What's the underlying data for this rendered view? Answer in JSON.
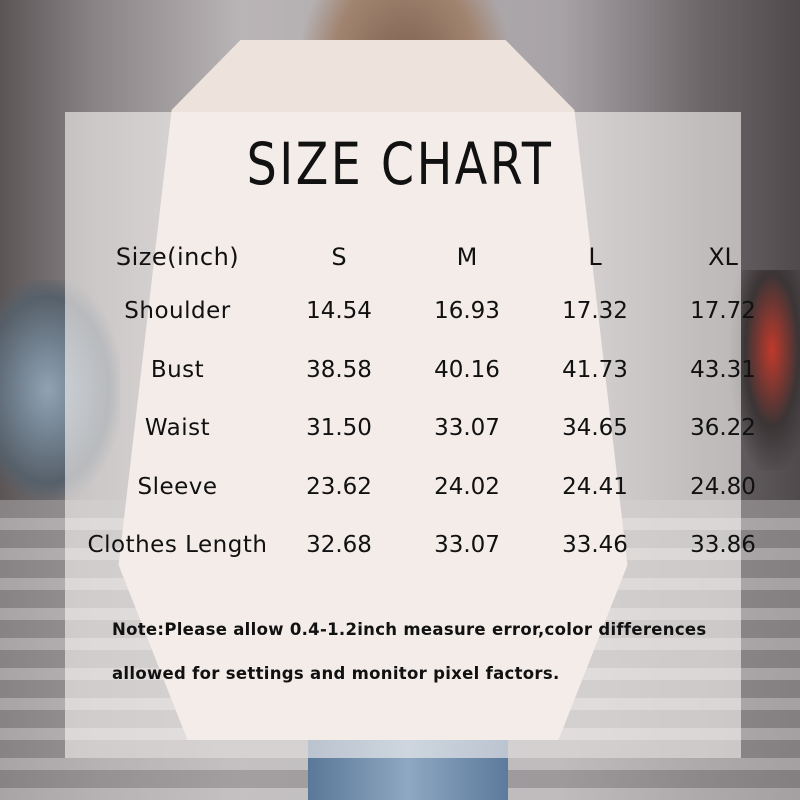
{
  "title": "SIZE CHART",
  "table": {
    "headers": [
      "Size(inch)",
      "S",
      "M",
      "L",
      "XL"
    ],
    "rows": [
      {
        "label": "Shoulder",
        "values": [
          "14.54",
          "16.93",
          "17.32",
          "17.72"
        ]
      },
      {
        "label": "Bust",
        "values": [
          "38.58",
          "40.16",
          "41.73",
          "43.31"
        ]
      },
      {
        "label": "Waist",
        "values": [
          "31.50",
          "33.07",
          "34.65",
          "36.22"
        ]
      },
      {
        "label": "Sleeve",
        "values": [
          "23.62",
          "24.02",
          "24.41",
          "24.80"
        ]
      },
      {
        "label": "Clothes Length",
        "values": [
          "32.68",
          "33.07",
          "33.46",
          "33.86"
        ]
      }
    ]
  },
  "note": "Note:Please allow 0.4-1.2inch measure error,color differences allowed for settings and monitor pixel factors."
}
